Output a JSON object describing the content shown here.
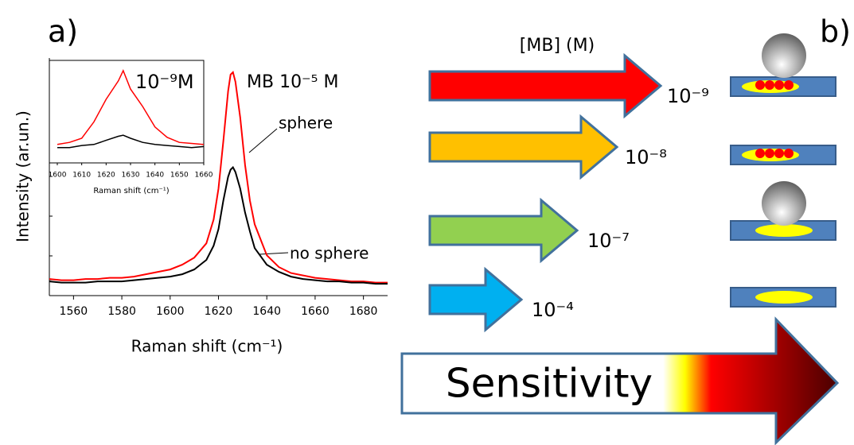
{
  "panel_labels": [
    "a)",
    "b)"
  ],
  "chart_data": [
    {
      "type": "line",
      "x": [
        1550,
        1555,
        1560,
        1565,
        1570,
        1575,
        1580,
        1585,
        1590,
        1595,
        1600,
        1605,
        1610,
        1615,
        1618,
        1620,
        1622,
        1624,
        1625,
        1626,
        1627,
        1629,
        1631,
        1633,
        1635,
        1640,
        1645,
        1650,
        1655,
        1660,
        1665,
        1670,
        1675,
        1680,
        1685,
        1690
      ],
      "series": [
        {
          "name": "sphere",
          "color": "#ff0000",
          "values": [
            7,
            6.5,
            6.5,
            7,
            7,
            7.5,
            7.5,
            8,
            9,
            10,
            11,
            13,
            16,
            22,
            32,
            45,
            65,
            86,
            93,
            94,
            90,
            75,
            55,
            40,
            30,
            17,
            12,
            9.5,
            8.5,
            7.5,
            7,
            6.5,
            6,
            6,
            5.5,
            5.5
          ]
        },
        {
          "name": "no sphere",
          "color": "#000000",
          "values": [
            6,
            5.5,
            5.5,
            5.5,
            6,
            6,
            6,
            6.5,
            7,
            7.5,
            8,
            9,
            11,
            15,
            21,
            28,
            40,
            50,
            53,
            54,
            52,
            45,
            35,
            27,
            20,
            13,
            10,
            8,
            7,
            6.5,
            6,
            6,
            5.5,
            5.5,
            5,
            5
          ]
        }
      ],
      "xlim": [
        1550,
        1690
      ],
      "ylim": [
        0,
        100
      ],
      "xticks": [
        1560,
        1580,
        1600,
        1620,
        1640,
        1660,
        1680
      ],
      "x_label": "Raman shift (cm⁻¹)",
      "y_label": "Intensity (ar.un.)",
      "annotations": [
        "MB 10⁻⁵ M"
      ]
    },
    {
      "type": "line",
      "x": [
        1600,
        1605,
        1610,
        1615,
        1620,
        1625,
        1627,
        1630,
        1635,
        1640,
        1645,
        1650,
        1655,
        1660
      ],
      "series": [
        {
          "color": "#ff0000",
          "values": [
            18,
            20,
            24,
            40,
            62,
            80,
            90,
            72,
            55,
            35,
            25,
            20,
            19,
            18
          ]
        },
        {
          "color": "#000000",
          "values": [
            15,
            15,
            17,
            18,
            22,
            26,
            27,
            24,
            20,
            18,
            17,
            16,
            15,
            16
          ]
        }
      ],
      "xlim": [
        1600,
        1660
      ],
      "ylim": [
        0,
        100
      ],
      "xticks": [
        1600,
        1610,
        1620,
        1630,
        1640,
        1650,
        1660
      ],
      "x_label": "Raman shift (cm⁻¹)",
      "annotations": [
        "10⁻⁹M"
      ]
    }
  ],
  "diagram": {
    "header": "[MB] (M)",
    "arrows": [
      {
        "label": "10⁻⁹",
        "color": "#ff0000"
      },
      {
        "label": "10⁻⁸",
        "color": "#ffc000"
      },
      {
        "label": "10⁻⁷",
        "color": "#92d050"
      },
      {
        "label": "10⁻⁴",
        "color": "#00b0f0"
      }
    ],
    "sensitivity": "Sensitivity"
  }
}
